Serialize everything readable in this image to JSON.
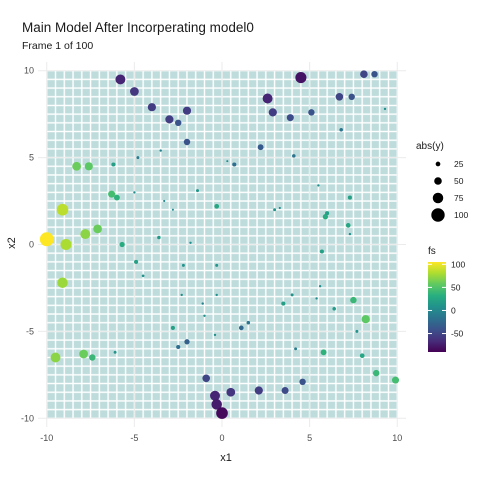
{
  "chart_data": {
    "type": "scatter",
    "title": "Main Model After Incorperating model0",
    "subtitle": "Frame 1 of 100",
    "xlabel": "x1",
    "ylabel": "x2",
    "xlim": [
      -10.5,
      10.5
    ],
    "ylim": [
      -10.5,
      10.5
    ],
    "x_ticks": [
      -10,
      -5,
      0,
      5,
      10
    ],
    "y_ticks": [
      -10,
      -5,
      0,
      5,
      10
    ],
    "x_tick_labels": [
      "-10",
      "-5",
      "0",
      "5",
      "10"
    ],
    "y_tick_labels": [
      "-10",
      "-5",
      "0",
      "5",
      "10"
    ],
    "background_grid": {
      "type": "tile-grid",
      "cells": 40,
      "range": [
        -10,
        10
      ],
      "color": "#bfdcdc"
    },
    "legend": [
      {
        "title": "abs(y)",
        "kind": "size",
        "entries": [
          {
            "label": "25",
            "value": 25
          },
          {
            "label": "50",
            "value": 50
          },
          {
            "label": "75",
            "value": 75
          },
          {
            "label": "100",
            "value": 100
          }
        ]
      },
      {
        "title": "fs",
        "kind": "colorbar",
        "palette": "viridis",
        "range": [
          -90,
          105
        ],
        "ticks": [
          {
            "label": "100",
            "value": 100
          },
          {
            "label": "50",
            "value": 50
          },
          {
            "label": "0",
            "value": 0
          },
          {
            "label": "-50",
            "value": -50
          }
        ]
      }
    ],
    "legend_position": "right",
    "points": [
      {
        "x": -10.0,
        "y": 0.3,
        "fs": 105,
        "size": 105
      },
      {
        "x": -9.5,
        "y": -6.5,
        "fs": 70,
        "size": 70
      },
      {
        "x": -9.1,
        "y": 2.0,
        "fs": 85,
        "size": 85
      },
      {
        "x": -8.9,
        "y": 0.0,
        "fs": 80,
        "size": 80
      },
      {
        "x": -9.1,
        "y": -2.2,
        "fs": 75,
        "size": 75
      },
      {
        "x": -8.3,
        "y": 4.5,
        "fs": 60,
        "size": 60
      },
      {
        "x": -7.8,
        "y": 0.6,
        "fs": 70,
        "size": 70
      },
      {
        "x": -7.6,
        "y": 4.5,
        "fs": 55,
        "size": 55
      },
      {
        "x": -7.9,
        "y": -6.3,
        "fs": 60,
        "size": 60
      },
      {
        "x": -7.4,
        "y": -6.5,
        "fs": 40,
        "size": 40
      },
      {
        "x": -7.1,
        "y": 0.9,
        "fs": 60,
        "size": 60
      },
      {
        "x": -6.3,
        "y": 2.9,
        "fs": 45,
        "size": 45
      },
      {
        "x": -6.0,
        "y": 2.7,
        "fs": 35,
        "size": 35
      },
      {
        "x": -6.2,
        "y": 4.6,
        "fs": 20,
        "size": 20
      },
      {
        "x": -5.7,
        "y": 0.0,
        "fs": 30,
        "size": 30
      },
      {
        "x": -6.1,
        "y": -6.2,
        "fs": 10,
        "size": 10
      },
      {
        "x": -5.0,
        "y": 3.0,
        "fs": 5,
        "size": 5
      },
      {
        "x": -4.9,
        "y": -1.0,
        "fs": 20,
        "size": 20
      },
      {
        "x": -4.5,
        "y": -1.8,
        "fs": 8,
        "size": 8
      },
      {
        "x": -5.8,
        "y": 9.5,
        "fs": -70,
        "size": 70
      },
      {
        "x": -5.0,
        "y": 8.8,
        "fs": -60,
        "size": 60
      },
      {
        "x": -4.8,
        "y": 5.0,
        "fs": -10,
        "size": 10
      },
      {
        "x": -4.0,
        "y": 7.9,
        "fs": -55,
        "size": 55
      },
      {
        "x": -3.5,
        "y": 5.4,
        "fs": -5,
        "size": 5
      },
      {
        "x": -3.6,
        "y": 0.4,
        "fs": 15,
        "size": 15
      },
      {
        "x": -3.3,
        "y": 2.5,
        "fs": -2,
        "size": 3
      },
      {
        "x": -3.0,
        "y": 7.2,
        "fs": -55,
        "size": 55
      },
      {
        "x": -2.8,
        "y": 2.0,
        "fs": 2,
        "size": 2
      },
      {
        "x": -2.8,
        "y": -4.8,
        "fs": 20,
        "size": 20
      },
      {
        "x": -2.5,
        "y": 7.0,
        "fs": -40,
        "size": 40
      },
      {
        "x": -2.0,
        "y": 7.7,
        "fs": -55,
        "size": 55
      },
      {
        "x": -2.0,
        "y": 5.9,
        "fs": -40,
        "size": 40
      },
      {
        "x": -2.3,
        "y": -2.9,
        "fs": 5,
        "size": 5
      },
      {
        "x": -2.2,
        "y": -1.2,
        "fs": 10,
        "size": 10
      },
      {
        "x": -2.5,
        "y": -5.9,
        "fs": -20,
        "size": 20
      },
      {
        "x": -2.0,
        "y": -5.6,
        "fs": -30,
        "size": 30
      },
      {
        "x": -1.8,
        "y": 0.1,
        "fs": 5,
        "size": 5
      },
      {
        "x": -1.1,
        "y": -3.4,
        "fs": -5,
        "size": 5
      },
      {
        "x": -1.4,
        "y": 3.1,
        "fs": 10,
        "size": 10
      },
      {
        "x": -1.0,
        "y": -4.1,
        "fs": 5,
        "size": 5
      },
      {
        "x": -0.9,
        "y": -7.7,
        "fs": -50,
        "size": 50
      },
      {
        "x": -0.4,
        "y": -5.2,
        "fs": 5,
        "size": 5
      },
      {
        "x": -0.3,
        "y": -1.2,
        "fs": 10,
        "size": 10
      },
      {
        "x": -0.3,
        "y": -2.9,
        "fs": 5,
        "size": 5
      },
      {
        "x": -0.3,
        "y": 2.2,
        "fs": 25,
        "size": 25
      },
      {
        "x": -0.4,
        "y": -8.7,
        "fs": -70,
        "size": 70
      },
      {
        "x": -0.3,
        "y": -9.2,
        "fs": -75,
        "size": 75
      },
      {
        "x": 0.0,
        "y": -9.7,
        "fs": -85,
        "size": 85
      },
      {
        "x": 0.3,
        "y": 4.8,
        "fs": 2,
        "size": 2
      },
      {
        "x": 0.7,
        "y": 4.6,
        "fs": -20,
        "size": 20
      },
      {
        "x": 0.5,
        "y": -8.5,
        "fs": -60,
        "size": 60
      },
      {
        "x": 1.1,
        "y": -4.8,
        "fs": -25,
        "size": 25
      },
      {
        "x": 1.5,
        "y": -4.5,
        "fs": -15,
        "size": 15
      },
      {
        "x": 2.2,
        "y": 5.6,
        "fs": -35,
        "size": 35
      },
      {
        "x": 2.1,
        "y": -8.4,
        "fs": -55,
        "size": 55
      },
      {
        "x": 2.6,
        "y": 8.4,
        "fs": -70,
        "size": 70
      },
      {
        "x": 2.9,
        "y": 7.6,
        "fs": -55,
        "size": 55
      },
      {
        "x": 3.0,
        "y": 2.0,
        "fs": 10,
        "size": 10
      },
      {
        "x": 3.3,
        "y": 2.1,
        "fs": 2,
        "size": 3
      },
      {
        "x": 3.5,
        "y": -3.4,
        "fs": 20,
        "size": 20
      },
      {
        "x": 3.6,
        "y": -8.4,
        "fs": -45,
        "size": 45
      },
      {
        "x": 3.9,
        "y": 7.3,
        "fs": -45,
        "size": 45
      },
      {
        "x": 4.0,
        "y": -2.9,
        "fs": 10,
        "size": 10
      },
      {
        "x": 4.1,
        "y": 5.1,
        "fs": -15,
        "size": 15
      },
      {
        "x": 4.2,
        "y": -6.0,
        "fs": -10,
        "size": 10
      },
      {
        "x": 4.5,
        "y": 9.6,
        "fs": -80,
        "size": 80
      },
      {
        "x": 4.6,
        "y": -7.9,
        "fs": -40,
        "size": 40
      },
      {
        "x": 5.1,
        "y": 7.6,
        "fs": -40,
        "size": 40
      },
      {
        "x": 5.5,
        "y": 3.4,
        "fs": 5,
        "size": 5
      },
      {
        "x": 5.7,
        "y": -0.4,
        "fs": 20,
        "size": 20
      },
      {
        "x": 5.6,
        "y": -2.4,
        "fs": 5,
        "size": 5
      },
      {
        "x": 5.8,
        "y": -6.2,
        "fs": 35,
        "size": 35
      },
      {
        "x": 5.9,
        "y": 1.6,
        "fs": 30,
        "size": 30
      },
      {
        "x": 6.0,
        "y": 1.8,
        "fs": 20,
        "size": 20
      },
      {
        "x": 5.4,
        "y": -3.1,
        "fs": 5,
        "size": 5
      },
      {
        "x": 6.4,
        "y": -3.7,
        "fs": 15,
        "size": 15
      },
      {
        "x": 6.7,
        "y": 8.5,
        "fs": -50,
        "size": 50
      },
      {
        "x": 6.8,
        "y": 6.6,
        "fs": -15,
        "size": 15
      },
      {
        "x": 7.2,
        "y": 1.1,
        "fs": 25,
        "size": 25
      },
      {
        "x": 7.3,
        "y": 2.7,
        "fs": 20,
        "size": 20
      },
      {
        "x": 7.4,
        "y": 8.5,
        "fs": -40,
        "size": 40
      },
      {
        "x": 7.3,
        "y": 0.6,
        "fs": 5,
        "size": 5
      },
      {
        "x": 7.7,
        "y": -5.0,
        "fs": 10,
        "size": 10
      },
      {
        "x": 7.5,
        "y": -3.2,
        "fs": 40,
        "size": 40
      },
      {
        "x": 8.1,
        "y": 9.8,
        "fs": -50,
        "size": 50
      },
      {
        "x": 8.0,
        "y": -6.4,
        "fs": 25,
        "size": 25
      },
      {
        "x": 8.2,
        "y": -4.3,
        "fs": 55,
        "size": 55
      },
      {
        "x": 8.7,
        "y": 9.8,
        "fs": -40,
        "size": 40
      },
      {
        "x": 9.3,
        "y": 7.8,
        "fs": 5,
        "size": 5
      },
      {
        "x": 8.8,
        "y": -7.4,
        "fs": 40,
        "size": 40
      },
      {
        "x": 9.9,
        "y": -7.8,
        "fs": 45,
        "size": 45
      }
    ]
  }
}
